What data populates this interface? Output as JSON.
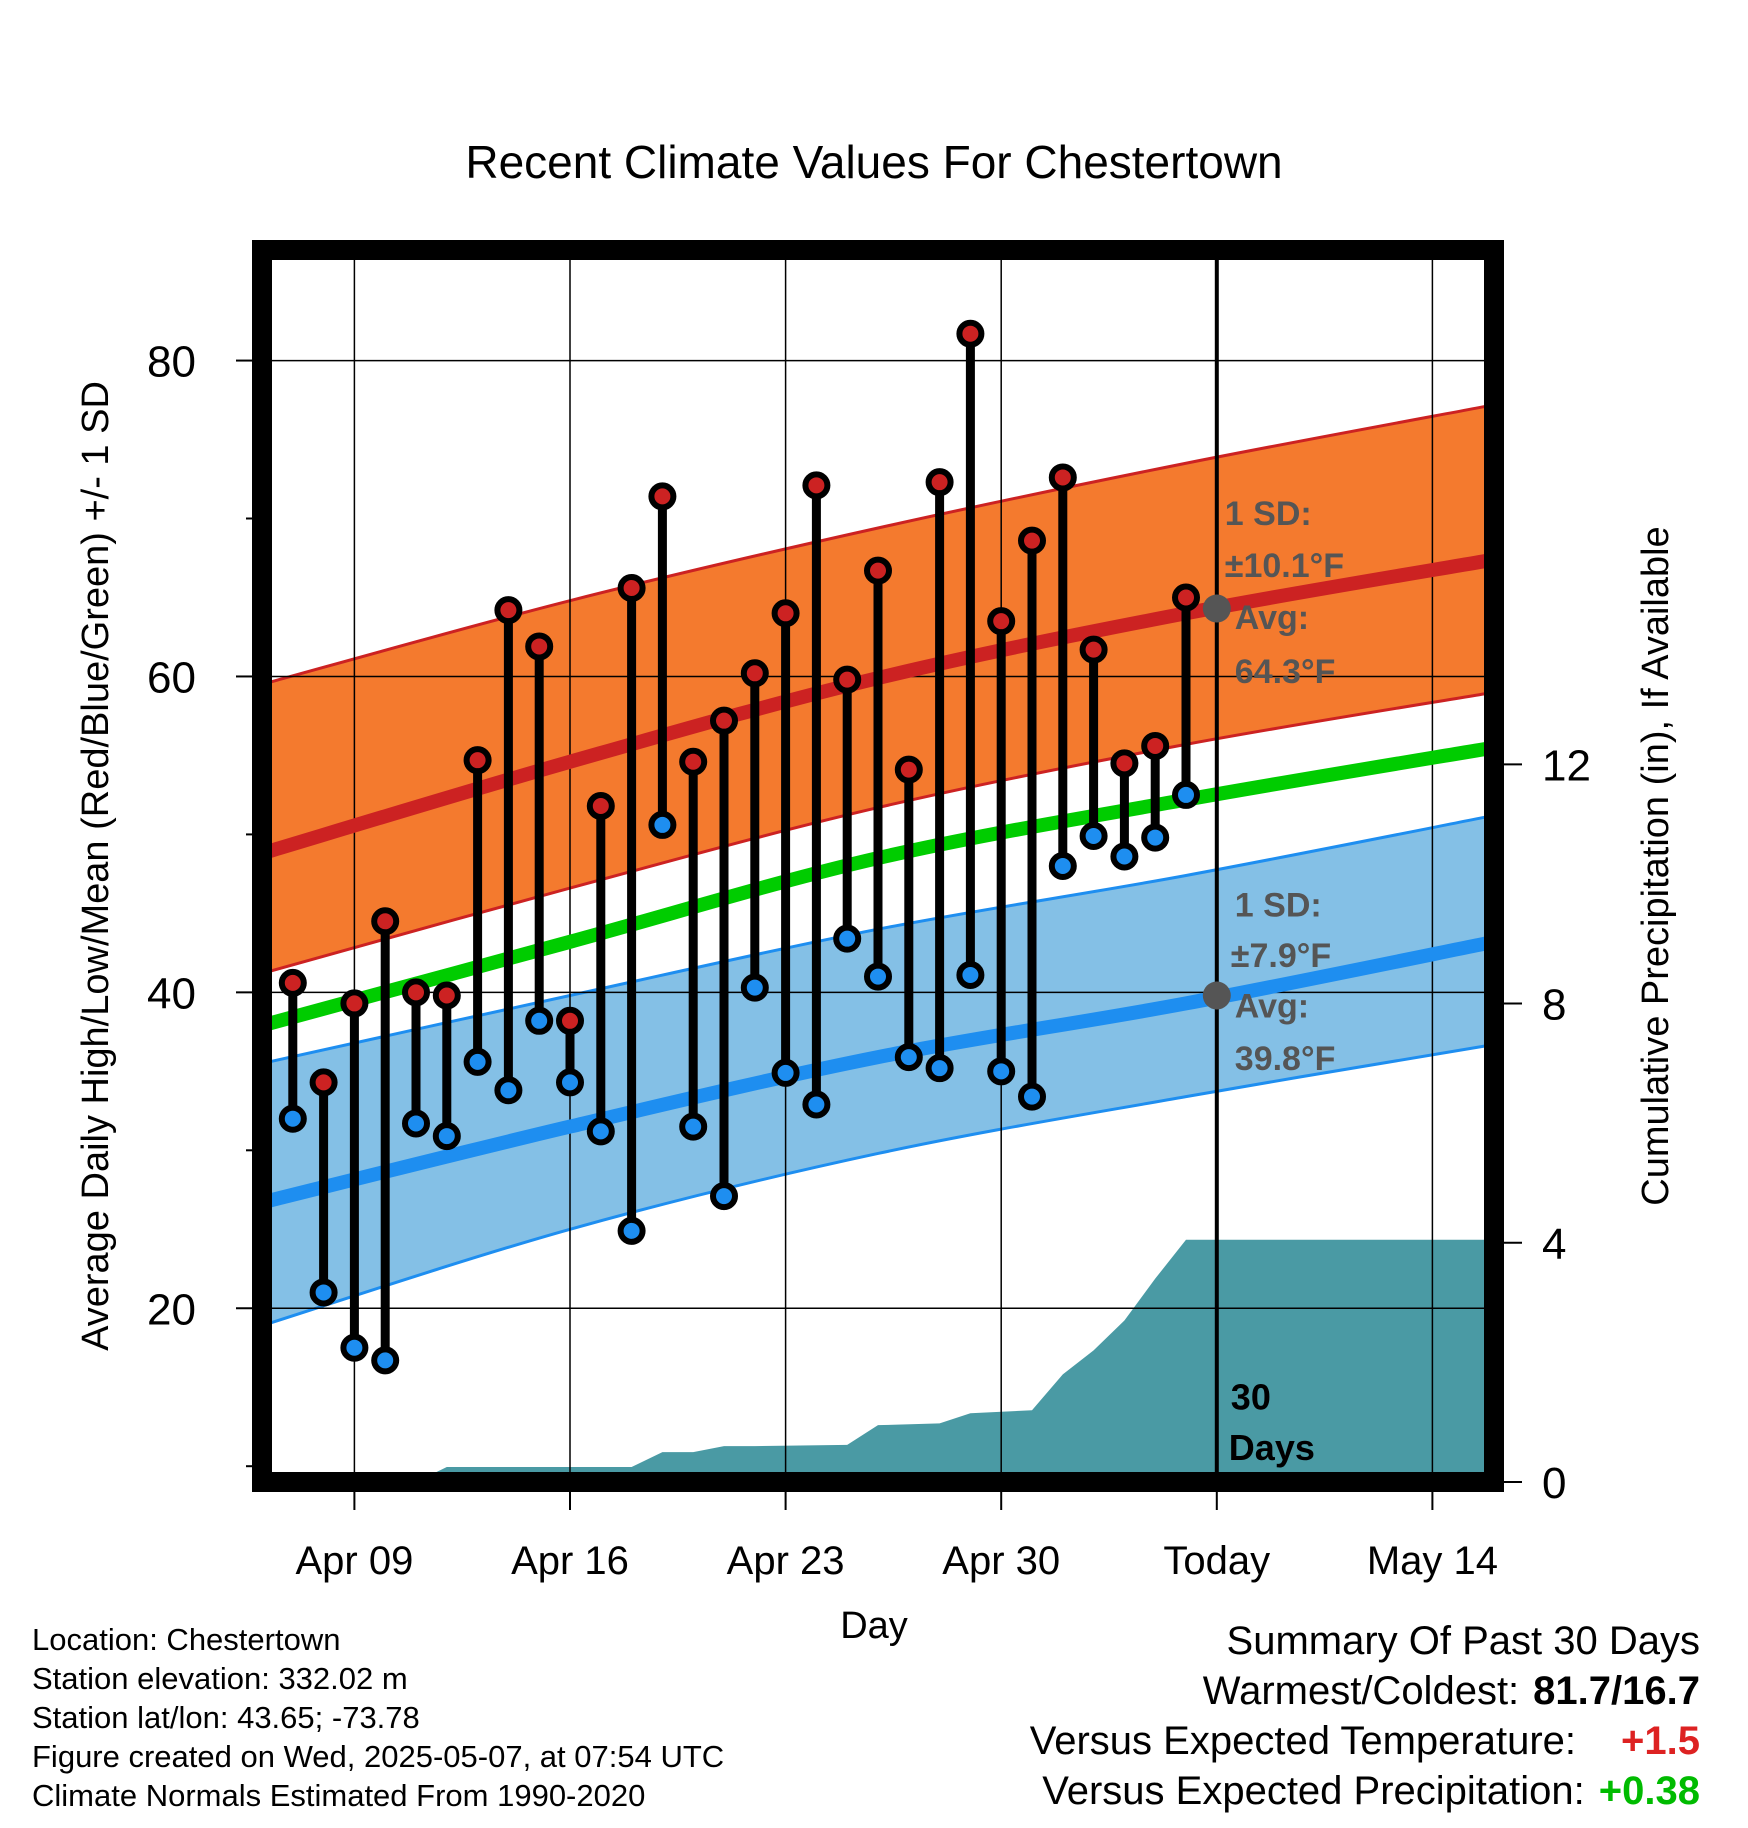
{
  "chart_data": {
    "type": "line",
    "title": "Recent Climate Values For Chestertown",
    "xlabel": "Day",
    "ylabel": "Average Daily High/Low/Mean (Red/Blue/Green) +/- 1 SD",
    "y2label": "Cumulative Precipitation (in), If Available",
    "x_ticks": [
      "Apr 09",
      "Apr 16",
      "Apr 23",
      "Apr 30",
      "Today",
      "May 14"
    ],
    "y_ticks": [
      "20",
      "40",
      "60",
      "80"
    ],
    "y2_ticks": [
      "0",
      "4",
      "8",
      "12"
    ],
    "xlim": [
      "2025-04-06",
      "2025-05-16"
    ],
    "ylim": [
      9,
      87
    ],
    "y2lim": [
      0,
      20.6
    ],
    "today": "2025-05-07",
    "today_label": "30\nDays",
    "grid": true,
    "colors": {
      "high": "#cc2222",
      "low": "#1e8ef0",
      "mean": "#00cc00",
      "high_band": "#f47a2e",
      "low_band": "#84c0e6",
      "precip": "#4a9aa4",
      "annotation": "#555555"
    },
    "normals": {
      "dates": [
        "2025-04-06",
        "2025-04-16",
        "2025-04-26",
        "2025-05-06",
        "2025-05-16"
      ],
      "high_mean": [
        48.8,
        54.6,
        59.9,
        64.0,
        67.4
      ],
      "high_upper": [
        59.5,
        64.8,
        69.4,
        73.5,
        77.2
      ],
      "high_lower": [
        41.2,
        46.6,
        51.7,
        55.7,
        59.0
      ],
      "mean": [
        37.9,
        43.2,
        48.5,
        52.2,
        55.5
      ],
      "low_mean": [
        26.7,
        31.5,
        35.9,
        39.3,
        43.2
      ],
      "low_upper": [
        35.5,
        39.8,
        44.0,
        47.4,
        51.2
      ],
      "low_lower": [
        18.9,
        25.0,
        29.8,
        33.4,
        36.7
      ]
    },
    "series": [
      {
        "name": "High",
        "dates": [
          "2025-04-07",
          "2025-04-08",
          "2025-04-09",
          "2025-04-10",
          "2025-04-11",
          "2025-04-12",
          "2025-04-13",
          "2025-04-14",
          "2025-04-15",
          "2025-04-16",
          "2025-04-17",
          "2025-04-18",
          "2025-04-19",
          "2025-04-20",
          "2025-04-21",
          "2025-04-22",
          "2025-04-23",
          "2025-04-24",
          "2025-04-25",
          "2025-04-26",
          "2025-04-27",
          "2025-04-28",
          "2025-04-29",
          "2025-04-30",
          "2025-05-01",
          "2025-05-02",
          "2025-05-03",
          "2025-05-04",
          "2025-05-05",
          "2025-05-06"
        ],
        "values": [
          40.6,
          34.3,
          39.3,
          44.5,
          40.0,
          39.8,
          54.7,
          64.2,
          61.9,
          38.2,
          51.8,
          65.6,
          71.4,
          54.6,
          57.2,
          60.2,
          64.0,
          72.1,
          59.8,
          66.7,
          54.1,
          72.3,
          81.7,
          63.5,
          68.6,
          72.6,
          61.7,
          54.5,
          55.6,
          65.0
        ]
      },
      {
        "name": "Low",
        "dates": [
          "2025-04-07",
          "2025-04-08",
          "2025-04-09",
          "2025-04-10",
          "2025-04-11",
          "2025-04-12",
          "2025-04-13",
          "2025-04-14",
          "2025-04-15",
          "2025-04-16",
          "2025-04-17",
          "2025-04-18",
          "2025-04-19",
          "2025-04-20",
          "2025-04-21",
          "2025-04-22",
          "2025-04-23",
          "2025-04-24",
          "2025-04-25",
          "2025-04-26",
          "2025-04-27",
          "2025-04-28",
          "2025-04-29",
          "2025-04-30",
          "2025-05-01",
          "2025-05-02",
          "2025-05-03",
          "2025-05-04",
          "2025-05-05",
          "2025-05-06"
        ],
        "values": [
          32.0,
          21.0,
          17.5,
          16.7,
          31.7,
          30.9,
          35.6,
          33.8,
          38.2,
          34.3,
          31.2,
          24.9,
          50.6,
          31.5,
          27.1,
          40.3,
          34.9,
          32.9,
          43.4,
          41.0,
          35.9,
          35.2,
          41.1,
          35.0,
          33.4,
          48.0,
          49.9,
          48.6,
          49.8,
          52.5
        ]
      },
      {
        "name": "Cumulative Precipitation",
        "dates": [
          "2025-04-06",
          "2025-04-11",
          "2025-04-12",
          "2025-04-13",
          "2025-04-18",
          "2025-04-19",
          "2025-04-20",
          "2025-04-21",
          "2025-04-22",
          "2025-04-25",
          "2025-04-26",
          "2025-04-28",
          "2025-04-29",
          "2025-05-01",
          "2025-05-02",
          "2025-05-03",
          "2025-05-04",
          "2025-05-05",
          "2025-05-06",
          "2025-05-16"
        ],
        "values": [
          0,
          0,
          0.25,
          0.25,
          0.25,
          0.5,
          0.5,
          0.6,
          0.6,
          0.62,
          0.95,
          0.98,
          1.15,
          1.2,
          1.8,
          2.2,
          2.7,
          3.4,
          4.05,
          4.05
        ]
      }
    ],
    "annotations": {
      "high_sd_label": "1 SD:",
      "high_sd_value": "±10.1°F",
      "high_avg_label": "Avg:",
      "high_avg_value": "64.3°F",
      "high_avg": 64.3,
      "low_sd_label": "1 SD:",
      "low_sd_value": "±7.9°F",
      "low_avg_label": "Avg:",
      "low_avg_value": "39.8°F",
      "low_avg": 39.8
    }
  },
  "footer": {
    "location": "Location: Chestertown",
    "elevation": "Station elevation: 332.02 m",
    "latlon": "Station lat/lon: 43.65; -73.78",
    "created": "Figure created on Wed, 2025-05-07, at 07:54 UTC",
    "normals": "Climate Normals Estimated From 1990-2020"
  },
  "summary": {
    "heading": "Summary Of Past 30 Days",
    "warmest_label": "Warmest/Coldest:",
    "warmest_value": "81.7/16.7",
    "temp_label": "Versus Expected Temperature:",
    "temp_value": "+1.5",
    "temp_color": "#dd2222",
    "precip_label": "Versus Expected Precipitation:",
    "precip_value": "+0.38",
    "precip_color": "#00bb00"
  }
}
